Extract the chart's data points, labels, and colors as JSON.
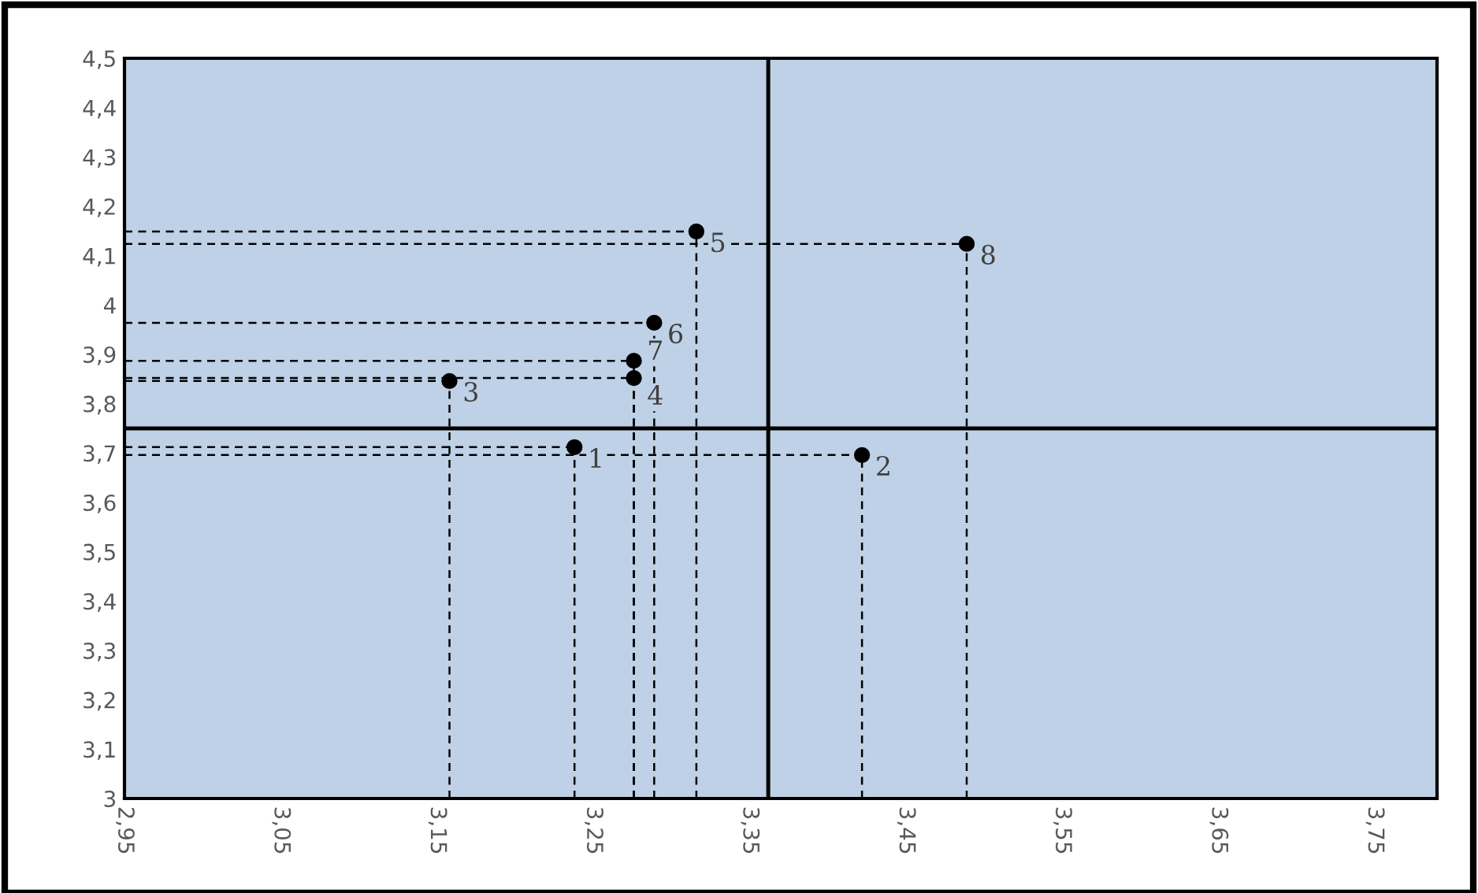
{
  "chart_data": {
    "type": "scatter",
    "marker": "circle",
    "grid": false,
    "x": [
      3.238,
      3.422,
      3.158,
      3.276,
      3.316,
      3.289,
      3.276,
      3.489
    ],
    "series": [
      {
        "color": "#000000",
        "values": [
          3.712,
          3.696,
          3.846,
          3.852,
          4.149,
          3.964,
          3.887,
          4.124
        ]
      }
    ],
    "annotations": [
      {
        "text": "1",
        "x": 3.238,
        "y": 3.712
      },
      {
        "text": "2",
        "x": 3.422,
        "y": 3.696
      },
      {
        "text": "3",
        "x": 3.158,
        "y": 3.846
      },
      {
        "text": "4",
        "x": 3.276,
        "y": 3.852
      },
      {
        "text": "5",
        "x": 3.316,
        "y": 4.149
      },
      {
        "text": "6",
        "x": 3.289,
        "y": 3.964
      },
      {
        "text": "7",
        "x": 3.276,
        "y": 3.887
      },
      {
        "text": "8",
        "x": 3.489,
        "y": 4.124
      }
    ],
    "ref_lines": [
      {
        "axis": "x",
        "value": 3.362,
        "color": "#000000",
        "line_style": "solid"
      },
      {
        "axis": "y",
        "value": 3.75,
        "color": "#000000",
        "line_style": "solid"
      }
    ],
    "xlim": [
      2.95,
      3.79
    ],
    "xticks": [
      {
        "value": 2.95,
        "label": "2,95"
      },
      {
        "value": 3.05,
        "label": "3,05"
      },
      {
        "value": 3.15,
        "label": "3,15"
      },
      {
        "value": 3.25,
        "label": "3,25"
      },
      {
        "value": 3.35,
        "label": "3,35"
      },
      {
        "value": 3.45,
        "label": "3,45"
      },
      {
        "value": 3.55,
        "label": "3,55"
      },
      {
        "value": 3.65,
        "label": "3,65"
      },
      {
        "value": 3.75,
        "label": "3,75"
      }
    ],
    "ylim": [
      3,
      4.5
    ],
    "yticks": [
      3,
      {
        "value": 3.1,
        "label": "3,1"
      },
      {
        "value": 3.2,
        "label": "3,2"
      },
      {
        "value": 3.3,
        "label": "3,3"
      },
      {
        "value": 3.4,
        "label": "3,4"
      },
      {
        "value": 3.5,
        "label": "3,5"
      },
      {
        "value": 3.6,
        "label": "3,6"
      },
      {
        "value": 3.7,
        "label": "3,7"
      },
      {
        "value": 3.8,
        "label": "3,8"
      },
      {
        "value": 3.9,
        "label": "3,9"
      },
      4,
      {
        "value": 4.1,
        "label": "4,1"
      },
      {
        "value": 4.2,
        "label": "4,2"
      },
      {
        "value": 4.3,
        "label": "4,3"
      },
      {
        "value": 4.4,
        "label": "4,4"
      },
      {
        "value": 4.5,
        "label": "4,5"
      }
    ]
  }
}
